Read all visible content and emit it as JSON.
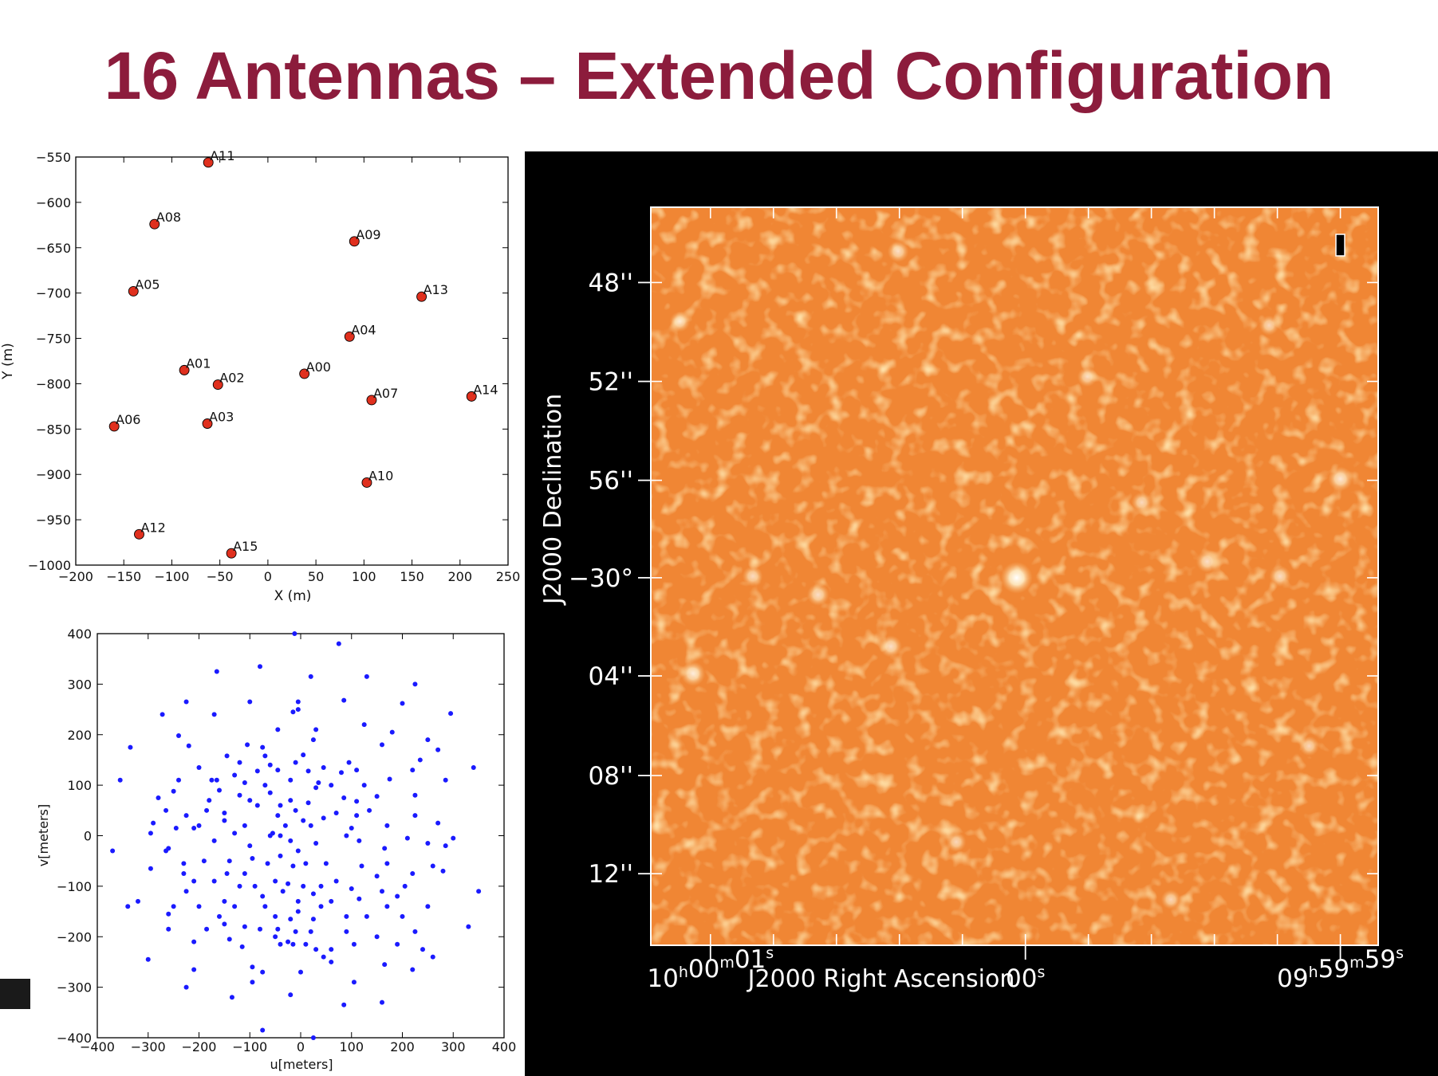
{
  "slide": {
    "title": "16 Antennas – Extended Configuration",
    "title_color": "#8c1c3c"
  },
  "chart_data": [
    {
      "type": "scatter",
      "name": "antenna-layout",
      "xlabel": "X (m)",
      "ylabel": "Y (m)",
      "xlim": [
        -200,
        250
      ],
      "ylim": [
        -1000,
        -550
      ],
      "y_inverted_display": true,
      "xticks": [
        -200,
        -150,
        -100,
        -50,
        0,
        50,
        100,
        150,
        200,
        250
      ],
      "yticks": [
        -550,
        -600,
        -650,
        -700,
        -750,
        -800,
        -850,
        -900,
        -950,
        -1000
      ],
      "marker_color": "#e0301e",
      "points": [
        {
          "label": "A00",
          "x": 38,
          "y": -789
        },
        {
          "label": "A01",
          "x": -87,
          "y": -785
        },
        {
          "label": "A02",
          "x": -52,
          "y": -801
        },
        {
          "label": "A03",
          "x": -63,
          "y": -844
        },
        {
          "label": "A04",
          "x": 85,
          "y": -748
        },
        {
          "label": "A05",
          "x": -140,
          "y": -698
        },
        {
          "label": "A06",
          "x": -160,
          "y": -847
        },
        {
          "label": "A07",
          "x": 108,
          "y": -818
        },
        {
          "label": "A08",
          "x": -118,
          "y": -624
        },
        {
          "label": "A09",
          "x": 90,
          "y": -643
        },
        {
          "label": "A10",
          "x": 103,
          "y": -909
        },
        {
          "label": "A11",
          "x": -62,
          "y": -556
        },
        {
          "label": "A12",
          "x": -134,
          "y": -966
        },
        {
          "label": "A13",
          "x": 160,
          "y": -704
        },
        {
          "label": "A14",
          "x": 212,
          "y": -814
        },
        {
          "label": "A15",
          "x": -38,
          "y": -987
        }
      ]
    },
    {
      "type": "scatter",
      "name": "uv-coverage",
      "xlabel": "u[meters]",
      "ylabel": "v[meters]",
      "xlim": [
        -400,
        400
      ],
      "ylim": [
        -400,
        400
      ],
      "xticks": [
        -400,
        -300,
        -200,
        -100,
        0,
        100,
        200,
        300,
        400
      ],
      "yticks": [
        400,
        300,
        200,
        100,
        0,
        -100,
        -200,
        -300,
        -400
      ],
      "marker_color": "#1a1aff",
      "points": [
        [
          -12,
          400
        ],
        [
          75,
          380
        ],
        [
          -80,
          335
        ],
        [
          -165,
          325
        ],
        [
          20,
          315
        ],
        [
          130,
          315
        ],
        [
          225,
          300
        ],
        [
          -225,
          265
        ],
        [
          -5,
          265
        ],
        [
          -100,
          265
        ],
        [
          85,
          268
        ],
        [
          200,
          262
        ],
        [
          -272,
          240
        ],
        [
          -170,
          240
        ],
        [
          -15,
          245
        ],
        [
          -5,
          250
        ],
        [
          295,
          242
        ],
        [
          125,
          220
        ],
        [
          -240,
          198
        ],
        [
          -45,
          210
        ],
        [
          30,
          210
        ],
        [
          180,
          205
        ],
        [
          -220,
          178
        ],
        [
          -105,
          180
        ],
        [
          -335,
          175
        ],
        [
          -75,
          175
        ],
        [
          160,
          180
        ],
        [
          25,
          190
        ],
        [
          250,
          190
        ],
        [
          270,
          170
        ],
        [
          -70,
          158
        ],
        [
          -145,
          158
        ],
        [
          5,
          160
        ],
        [
          -120,
          145
        ],
        [
          -10,
          145
        ],
        [
          95,
          145
        ],
        [
          235,
          150
        ],
        [
          -60,
          140
        ],
        [
          -200,
          135
        ],
        [
          -85,
          128
        ],
        [
          15,
          128
        ],
        [
          110,
          130
        ],
        [
          -130,
          120
        ],
        [
          -45,
          130
        ],
        [
          45,
          135
        ],
        [
          80,
          125
        ],
        [
          220,
          130
        ],
        [
          -175,
          110
        ],
        [
          -240,
          110
        ],
        [
          -165,
          110
        ],
        [
          -355,
          110
        ],
        [
          -110,
          105
        ],
        [
          -70,
          100
        ],
        [
          35,
          105
        ],
        [
          60,
          100
        ],
        [
          125,
          100
        ],
        [
          175,
          112
        ],
        [
          285,
          110
        ],
        [
          340,
          135
        ],
        [
          -20,
          110
        ],
        [
          -60,
          85
        ],
        [
          30,
          95
        ],
        [
          -160,
          90
        ],
        [
          -250,
          88
        ],
        [
          -120,
          80
        ],
        [
          -100,
          70
        ],
        [
          -20,
          70
        ],
        [
          85,
          75
        ],
        [
          150,
          78
        ],
        [
          225,
          80
        ],
        [
          -180,
          70
        ],
        [
          -280,
          75
        ],
        [
          -40,
          60
        ],
        [
          15,
          65
        ],
        [
          110,
          68
        ],
        [
          -85,
          60
        ],
        [
          -10,
          50
        ],
        [
          135,
          50
        ],
        [
          -265,
          50
        ],
        [
          -185,
          50
        ],
        [
          -150,
          45
        ],
        [
          -225,
          40
        ],
        [
          70,
          45
        ],
        [
          110,
          40
        ],
        [
          -45,
          40
        ],
        [
          5,
          30
        ],
        [
          45,
          35
        ],
        [
          225,
          40
        ],
        [
          -290,
          25
        ],
        [
          -245,
          15
        ],
        [
          -150,
          30
        ],
        [
          -110,
          20
        ],
        [
          -30,
          20
        ],
        [
          -210,
          15
        ],
        [
          -200,
          20
        ],
        [
          100,
          15
        ],
        [
          170,
          20
        ],
        [
          270,
          25
        ],
        [
          20,
          20
        ],
        [
          -295,
          5
        ],
        [
          -130,
          5
        ],
        [
          -55,
          5
        ],
        [
          -40,
          0
        ],
        [
          -60,
          0
        ],
        [
          90,
          0
        ],
        [
          -170,
          -10
        ],
        [
          -100,
          -20
        ],
        [
          -20,
          -10
        ],
        [
          30,
          -15
        ],
        [
          115,
          -10
        ],
        [
          210,
          -5
        ],
        [
          300,
          -5
        ],
        [
          -260,
          -25
        ],
        [
          -265,
          -30
        ],
        [
          -370,
          -30
        ],
        [
          -5,
          -30
        ],
        [
          165,
          -25
        ],
        [
          250,
          -15
        ],
        [
          285,
          -20
        ],
        [
          -40,
          -40
        ],
        [
          -95,
          -45
        ],
        [
          -190,
          -50
        ],
        [
          -230,
          -55
        ],
        [
          -140,
          -50
        ],
        [
          -65,
          -55
        ],
        [
          -15,
          -60
        ],
        [
          10,
          -55
        ],
        [
          50,
          -55
        ],
        [
          120,
          -60
        ],
        [
          170,
          -55
        ],
        [
          260,
          -60
        ],
        [
          -295,
          -65
        ],
        [
          -230,
          -75
        ],
        [
          -145,
          -75
        ],
        [
          -110,
          -75
        ],
        [
          -170,
          -90
        ],
        [
          -50,
          -90
        ],
        [
          -25,
          -95
        ],
        [
          70,
          -90
        ],
        [
          150,
          -80
        ],
        [
          220,
          -75
        ],
        [
          280,
          -70
        ],
        [
          -210,
          -90
        ],
        [
          -120,
          -100
        ],
        [
          -90,
          -100
        ],
        [
          5,
          -100
        ],
        [
          40,
          -100
        ],
        [
          160,
          -110
        ],
        [
          205,
          -100
        ],
        [
          -225,
          -110
        ],
        [
          -35,
          -110
        ],
        [
          25,
          -115
        ],
        [
          100,
          -105
        ],
        [
          -150,
          -130
        ],
        [
          -75,
          -120
        ],
        [
          -5,
          -130
        ],
        [
          60,
          -130
        ],
        [
          115,
          -125
        ],
        [
          190,
          -120
        ],
        [
          350,
          -110
        ],
        [
          -340,
          -140
        ],
        [
          -320,
          -130
        ],
        [
          -250,
          -140
        ],
        [
          -200,
          -140
        ],
        [
          -130,
          -140
        ],
        [
          -70,
          -140
        ],
        [
          40,
          -140
        ],
        [
          -5,
          -150
        ],
        [
          170,
          -140
        ],
        [
          250,
          -140
        ],
        [
          -50,
          -160
        ],
        [
          -160,
          -160
        ],
        [
          -20,
          -165
        ],
        [
          25,
          -165
        ],
        [
          90,
          -160
        ],
        [
          130,
          -160
        ],
        [
          200,
          -160
        ],
        [
          -260,
          -155
        ],
        [
          -150,
          -175
        ],
        [
          -110,
          -180
        ],
        [
          -45,
          -185
        ],
        [
          -80,
          -185
        ],
        [
          -10,
          -190
        ],
        [
          20,
          -190
        ],
        [
          90,
          -190
        ],
        [
          330,
          -180
        ],
        [
          225,
          -190
        ],
        [
          -260,
          -185
        ],
        [
          -185,
          -185
        ],
        [
          -50,
          -200
        ],
        [
          -25,
          -210
        ],
        [
          150,
          -200
        ],
        [
          -210,
          -210
        ],
        [
          -140,
          -205
        ],
        [
          -40,
          -215
        ],
        [
          -15,
          -215
        ],
        [
          10,
          -215
        ],
        [
          105,
          -215
        ],
        [
          190,
          -215
        ],
        [
          -300,
          -245
        ],
        [
          -115,
          -220
        ],
        [
          30,
          -225
        ],
        [
          60,
          -225
        ],
        [
          240,
          -225
        ],
        [
          -210,
          -265
        ],
        [
          45,
          -240
        ],
        [
          -95,
          -260
        ],
        [
          0,
          -270
        ],
        [
          165,
          -255
        ],
        [
          220,
          -265
        ],
        [
          -75,
          -270
        ],
        [
          -95,
          -290
        ],
        [
          -225,
          -300
        ],
        [
          -135,
          -320
        ],
        [
          -20,
          -315
        ],
        [
          105,
          -290
        ],
        [
          85,
          -335
        ],
        [
          260,
          -240
        ],
        [
          -75,
          -385
        ],
        [
          25,
          -400
        ],
        [
          160,
          -330
        ],
        [
          60,
          -250
        ]
      ]
    },
    {
      "type": "heatmap",
      "name": "dirty-image",
      "description_colormap": "orange",
      "background": "#000000",
      "field_color": "#f08634",
      "xlabel": "J2000 Right Ascension",
      "ylabel": "J2000 Declination",
      "ra_ticks": [
        {
          "pre": "10",
          "s1": "h",
          "mid1": "00",
          "s2": "m",
          "mid2": "01",
          "s3": "s",
          "t": 0.082
        },
        {
          "pre": "",
          "s1": "",
          "mid1": "00",
          "s2": "s",
          "mid2": "",
          "s3": "",
          "t": 0.515
        },
        {
          "pre": "09",
          "s1": "h",
          "mid1": "59",
          "s2": "m",
          "mid2": "59",
          "s3": "s",
          "t": 0.948
        }
      ],
      "dec_ticks": [
        {
          "label": "48''",
          "t": 0.102
        },
        {
          "label": "52''",
          "t": 0.236
        },
        {
          "label": "56''",
          "t": 0.37
        },
        {
          "label": "−30°",
          "t": 0.502
        },
        {
          "label": "04''",
          "t": 0.635
        },
        {
          "label": "08''",
          "t": 0.77
        },
        {
          "label": "12''",
          "t": 0.903
        }
      ],
      "sources": [
        {
          "u": 0.503,
          "v": 0.502,
          "strength": 1.0
        },
        {
          "u": 0.948,
          "v": 0.368,
          "strength": 0.55
        },
        {
          "u": 0.058,
          "v": 0.632,
          "strength": 0.55
        },
        {
          "u": 0.23,
          "v": 0.525,
          "strength": 0.4
        },
        {
          "u": 0.33,
          "v": 0.595,
          "strength": 0.4
        },
        {
          "u": 0.765,
          "v": 0.48,
          "strength": 0.4
        },
        {
          "u": 0.865,
          "v": 0.5,
          "strength": 0.35
        },
        {
          "u": 0.34,
          "v": 0.06,
          "strength": 0.35
        },
        {
          "u": 0.04,
          "v": 0.155,
          "strength": 0.3
        },
        {
          "u": 0.675,
          "v": 0.4,
          "strength": 0.3
        },
        {
          "u": 0.14,
          "v": 0.5,
          "strength": 0.3
        },
        {
          "u": 0.6,
          "v": 0.23,
          "strength": 0.25
        },
        {
          "u": 0.85,
          "v": 0.16,
          "strength": 0.25
        },
        {
          "u": 0.715,
          "v": 0.938,
          "strength": 0.25
        },
        {
          "u": 0.42,
          "v": 0.86,
          "strength": 0.25
        },
        {
          "u": 0.905,
          "v": 0.73,
          "strength": 0.25
        }
      ]
    }
  ]
}
